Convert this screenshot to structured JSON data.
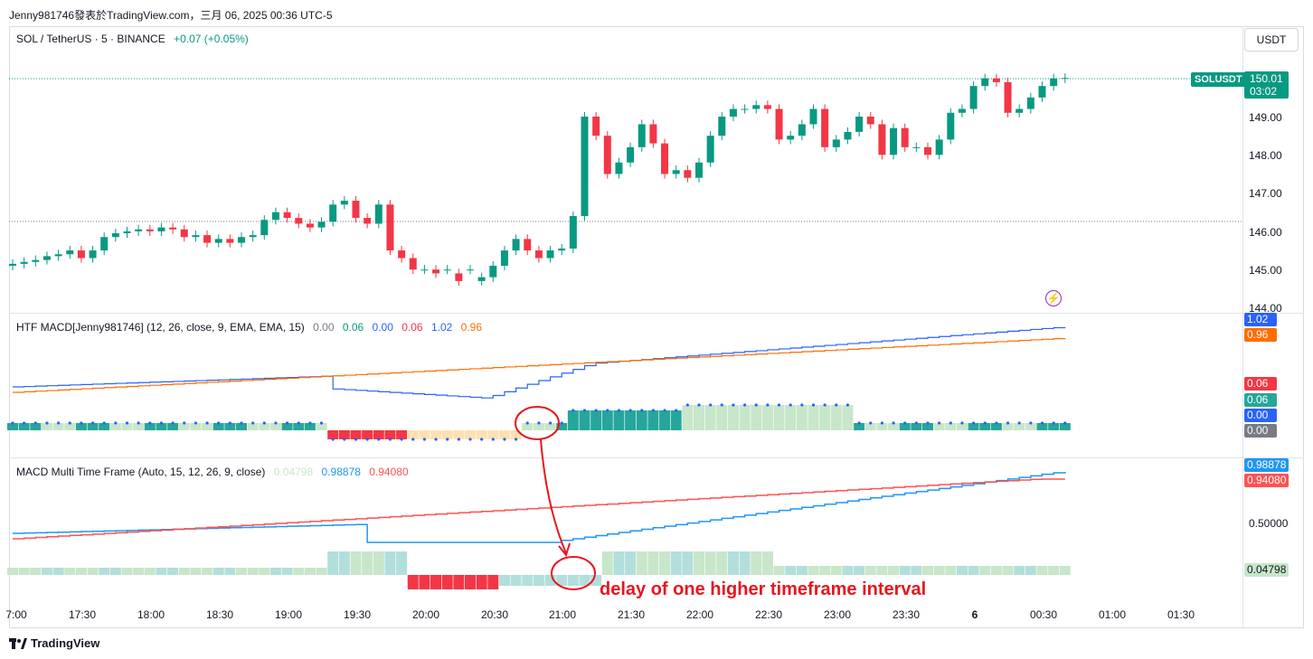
{
  "header": {
    "title": "Jenny981746發表於TradingView.com，三月 06, 2025 00:36 UTC-5"
  },
  "symbol_legend": {
    "symbol": "SOL / TetherUS · 5 · BINANCE",
    "change": "+0.07 (+0.05%)"
  },
  "currency_button": "USDT",
  "price_axis": {
    "labels": [
      "149.00",
      "148.00",
      "147.00",
      "146.00",
      "145.00",
      "144.00"
    ]
  },
  "last_price": {
    "symbol_tag": "SOLUSDT",
    "price": "150.01",
    "countdown": "03:02"
  },
  "htf_macd": {
    "title": "HTF MACD[Jenny981746] (12, 26, close, 9, EMA, EMA, 15)",
    "values": [
      "0.00",
      "0.06",
      "0.00",
      "0.06",
      "1.02",
      "0.96"
    ],
    "tags": [
      "1.02",
      "0.96",
      "0.06",
      "0.06",
      "0.00",
      "0.00"
    ]
  },
  "mtf_macd": {
    "title": "MACD Multi Time Frame (Auto, 15, 12, 26, 9, close)",
    "values": [
      "0.04798",
      "0.98878",
      "0.94080"
    ],
    "axis_label": "0.50000",
    "tags": [
      "0.98878",
      "0.94080",
      "0.04798"
    ]
  },
  "time_axis": {
    "labels": [
      "7:00",
      "17:30",
      "18:00",
      "18:30",
      "19:00",
      "19:30",
      "20:00",
      "20:30",
      "21:00",
      "21:30",
      "22:00",
      "22:30",
      "23:00",
      "23:30",
      "6",
      "00:30",
      "01:00",
      "01:30"
    ]
  },
  "annotation": "delay of one higher timeframe interval",
  "brand": "TradingView",
  "colors": {
    "up": "#089981",
    "down": "#f23645",
    "macd_line": "#2962ff",
    "signal_line": "#ff6d00",
    "mtf_macd_line": "#2196f3",
    "mtf_signal_line": "#ff5252",
    "annotation": "#e8151f"
  },
  "chart_data": {
    "type": "candlestick",
    "symbol": "SOL / TetherUS",
    "timeframe": "5",
    "ylim": [
      144.0,
      150.6
    ],
    "open": [
      145.1,
      145.15,
      145.2,
      145.25,
      145.35,
      145.4,
      145.5,
      145.3,
      145.5,
      145.85,
      145.95,
      146.0,
      146.05,
      146.0,
      146.1,
      146.05,
      145.85,
      145.9,
      145.7,
      145.8,
      145.7,
      145.85,
      145.9,
      146.3,
      146.5,
      146.35,
      146.2,
      146.1,
      146.25,
      146.7,
      146.8,
      146.35,
      146.2,
      146.7,
      145.5,
      145.3,
      145.0,
      145.0,
      145.0,
      144.9,
      145.0,
      144.7,
      144.8,
      145.1,
      145.5,
      145.8,
      145.5,
      145.3,
      145.5,
      145.55,
      146.4,
      149.0,
      148.5,
      147.5,
      147.8,
      148.2,
      148.8,
      148.3,
      147.5,
      147.6,
      147.4,
      147.8,
      148.5,
      149.0,
      149.2,
      149.2,
      149.3,
      149.2,
      148.4,
      148.5,
      148.8,
      149.2,
      148.2,
      148.4,
      148.6,
      149.0,
      148.8,
      148.0,
      148.7,
      148.2,
      148.2,
      148.0,
      148.4,
      149.1,
      149.2,
      149.8,
      150.0,
      149.9,
      149.1,
      149.2,
      149.5,
      149.8,
      150.0
    ],
    "close": [
      145.15,
      145.2,
      145.25,
      145.35,
      145.4,
      145.5,
      145.3,
      145.5,
      145.85,
      145.95,
      146.0,
      146.05,
      146.0,
      146.1,
      146.05,
      145.85,
      145.9,
      145.7,
      145.8,
      145.7,
      145.85,
      145.9,
      146.3,
      146.5,
      146.35,
      146.2,
      146.1,
      146.25,
      146.7,
      146.8,
      146.35,
      146.2,
      146.7,
      145.5,
      145.3,
      145.0,
      145.0,
      144.9,
      145.0,
      144.7,
      145.0,
      144.8,
      145.1,
      145.5,
      145.8,
      145.5,
      145.3,
      145.5,
      145.55,
      146.4,
      149.0,
      148.5,
      147.5,
      147.8,
      148.2,
      148.8,
      148.3,
      147.5,
      147.6,
      147.4,
      147.8,
      148.5,
      149.0,
      149.2,
      149.2,
      149.3,
      149.2,
      148.4,
      148.5,
      148.8,
      149.2,
      148.2,
      148.4,
      148.6,
      149.0,
      148.8,
      148.0,
      148.7,
      148.2,
      148.2,
      148.0,
      148.4,
      149.1,
      149.2,
      149.8,
      150.0,
      149.9,
      149.1,
      149.2,
      149.5,
      149.8,
      150.0,
      150.01
    ]
  }
}
